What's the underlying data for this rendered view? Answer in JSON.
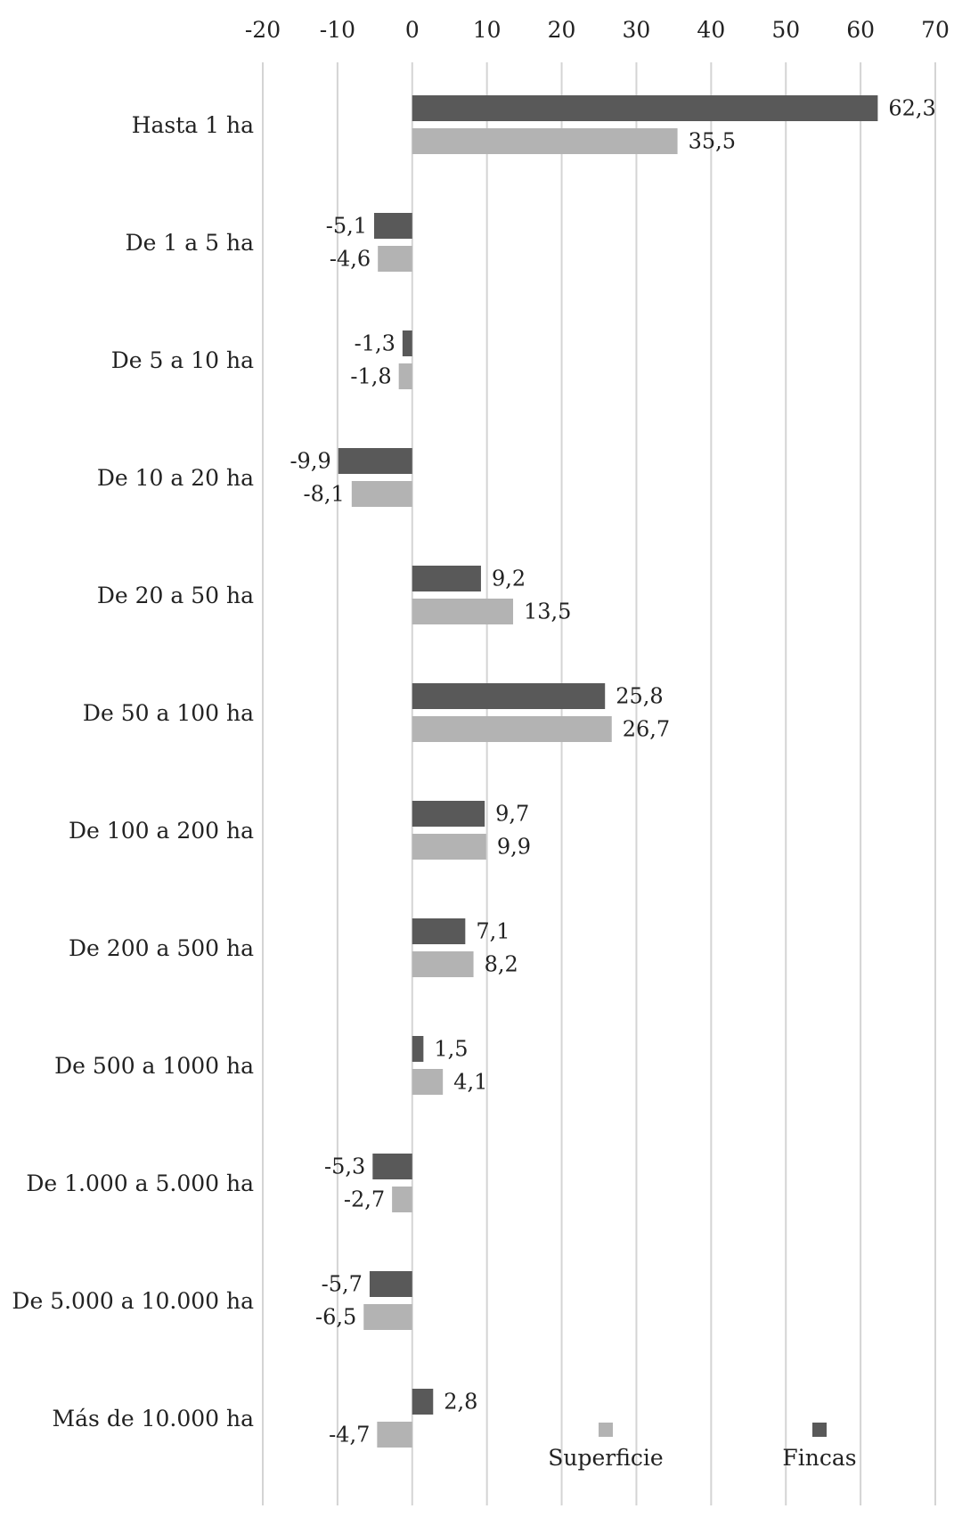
{
  "chart_data": {
    "type": "bar",
    "orientation": "horizontal",
    "categories": [
      "Hasta 1 ha",
      "De 1 a 5 ha",
      "De 5 a 10 ha",
      "De 10 a 20 ha",
      "De 20 a 50 ha",
      "De 50 a 100 ha",
      "De 100 a 200 ha",
      "De 200 a 500 ha",
      "De 500 a 1000 ha",
      "De 1.000 a 5.000 ha",
      "De 5.000 a 10.000 ha",
      "Más de 10.000 ha"
    ],
    "series": [
      {
        "name": "Fincas",
        "color": "#595959",
        "values": [
          62.3,
          -5.1,
          -1.3,
          -9.9,
          9.2,
          25.8,
          9.7,
          7.1,
          1.5,
          -5.3,
          -5.7,
          2.8
        ],
        "labels": [
          "62,3",
          "-5,1",
          "-1,3",
          "-9,9",
          "9,2",
          "25,8",
          "9,7",
          "7,1",
          "1,5",
          "-5,3",
          "-5,7",
          "2,8"
        ]
      },
      {
        "name": "Superficie",
        "color": "#b3b3b3",
        "values": [
          35.5,
          -4.6,
          -1.8,
          -8.1,
          13.5,
          26.7,
          9.9,
          8.2,
          4.1,
          -2.7,
          -6.5,
          -4.7
        ],
        "labels": [
          "35,5",
          "-4,6",
          "-1,8",
          "-8,1",
          "13,5",
          "26,7",
          "9,9",
          "8,2",
          "4,1",
          "-2,7",
          "-6,5",
          "-4,7"
        ]
      }
    ],
    "xlim": [
      -20,
      70
    ],
    "xticks": [
      "-20",
      "-10",
      "0",
      "10",
      "20",
      "30",
      "40",
      "50",
      "60",
      "70"
    ],
    "tick_values": [
      -20,
      -10,
      0,
      10,
      20,
      30,
      40,
      50,
      60,
      70
    ],
    "xaxis_position": "top",
    "grid": true,
    "legend_position": "bottom-right",
    "legend_order": [
      "Superficie",
      "Fincas"
    ]
  }
}
